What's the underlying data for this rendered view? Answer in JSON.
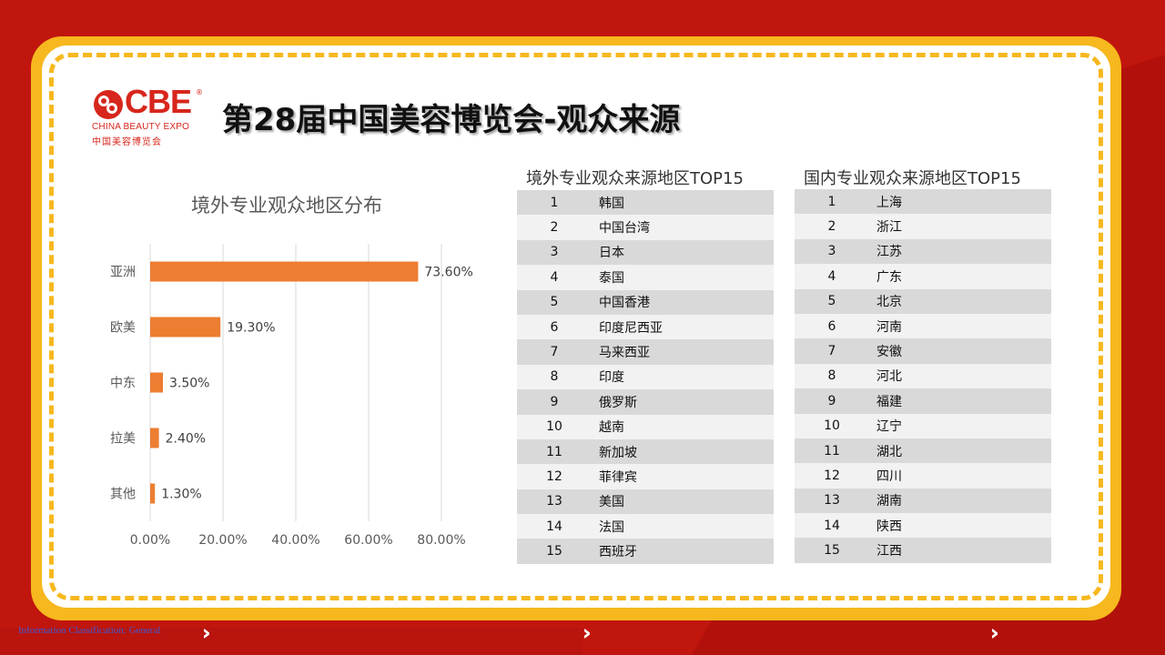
{
  "header": {
    "title": "第28届中国美容博览会-观众来源",
    "logo": {
      "main": "CBE",
      "reg": "®",
      "sub_en": "CHINA BEAUTY EXPO",
      "sub_cn": "中国美容博览会"
    }
  },
  "colors": {
    "background_red": "#c0160e",
    "frame_yellow": "#f6b81e",
    "bar_orange": "#ed7d31",
    "row_dark": "#d9d9d9",
    "row_light": "#f2f2f2"
  },
  "chart_data": {
    "type": "bar",
    "orientation": "horizontal",
    "title": "境外专业观众地区分布",
    "categories": [
      "亚洲",
      "欧美",
      "中东",
      "拉美",
      "其他"
    ],
    "values": [
      73.6,
      19.3,
      3.5,
      2.4,
      1.3
    ],
    "value_labels": [
      "73.60%",
      "19.30%",
      "3.50%",
      "2.40%",
      "1.30%"
    ],
    "xlim": [
      0,
      80
    ],
    "xticks": [
      "0.00%",
      "20.00%",
      "40.00%",
      "60.00%",
      "80.00%"
    ],
    "grid": true,
    "legend": "none"
  },
  "overseas_table": {
    "title": "境外专业观众来源地区TOP15",
    "rows": [
      {
        "rank": "1",
        "name": "韩国"
      },
      {
        "rank": "2",
        "name": "中国台湾"
      },
      {
        "rank": "3",
        "name": "日本"
      },
      {
        "rank": "4",
        "name": "泰国"
      },
      {
        "rank": "5",
        "name": "中国香港"
      },
      {
        "rank": "6",
        "name": "印度尼西亚"
      },
      {
        "rank": "7",
        "name": "马来西亚"
      },
      {
        "rank": "8",
        "name": "印度"
      },
      {
        "rank": "9",
        "name": "俄罗斯"
      },
      {
        "rank": "10",
        "name": "越南"
      },
      {
        "rank": "11",
        "name": "新加坡"
      },
      {
        "rank": "12",
        "name": "菲律宾"
      },
      {
        "rank": "13",
        "name": "美国"
      },
      {
        "rank": "14",
        "name": "法国"
      },
      {
        "rank": "15",
        "name": "西班牙"
      }
    ]
  },
  "domestic_table": {
    "title": "国内专业观众来源地区TOP15",
    "rows": [
      {
        "rank": "1",
        "name": "上海"
      },
      {
        "rank": "2",
        "name": "浙江"
      },
      {
        "rank": "3",
        "name": "江苏"
      },
      {
        "rank": "4",
        "name": "广东"
      },
      {
        "rank": "5",
        "name": "北京"
      },
      {
        "rank": "6",
        "name": "河南"
      },
      {
        "rank": "7",
        "name": "安徽"
      },
      {
        "rank": "8",
        "name": "河北"
      },
      {
        "rank": "9",
        "name": "福建"
      },
      {
        "rank": "10",
        "name": "辽宁"
      },
      {
        "rank": "11",
        "name": "湖北"
      },
      {
        "rank": "12",
        "name": "四川"
      },
      {
        "rank": "13",
        "name": "湖南"
      },
      {
        "rank": "14",
        "name": "陕西"
      },
      {
        "rank": "15",
        "name": "江西"
      }
    ]
  },
  "footer": {
    "classification": "Information Classification: General",
    "chevrons": "›››››››››"
  }
}
